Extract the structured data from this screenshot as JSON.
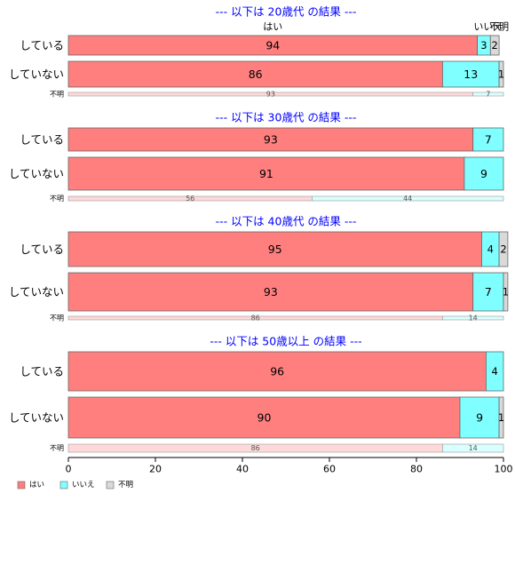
{
  "chart_data": {
    "type": "bar",
    "orientation": "horizontal",
    "stacked": true,
    "xlim": [
      0,
      100
    ],
    "xticks": [
      0,
      20,
      40,
      60,
      80,
      100
    ],
    "grid": false,
    "legend_position": "bottom-left",
    "colors": {
      "はい": "#ff7f7f",
      "いいえ": "#7fffff",
      "不明": "#d9d9d9",
      "axis": "#000000",
      "title": "#0000ff"
    },
    "column_headers": [
      {
        "text": "はい",
        "at": 47
      },
      {
        "text": "いいえ",
        "at": 96.5
      },
      {
        "text": "不明",
        "at": 99
      }
    ],
    "legend": [
      {
        "name": "はい",
        "color": "#ff7f7f"
      },
      {
        "name": "いいえ",
        "color": "#7fffff"
      },
      {
        "name": "不明",
        "color": "#d9d9d9"
      }
    ],
    "panels": [
      {
        "title": "--- 以下は 20歳代 の結果 ---",
        "show_headers": true,
        "rows": [
          {
            "label": "している",
            "values": [
              94,
              3,
              2
            ],
            "labels": [
              "94",
              "3",
              "2"
            ]
          },
          {
            "label": "していない",
            "values": [
              86,
              13,
              1
            ],
            "labels": [
              "86",
              "13",
              "1"
            ]
          }
        ],
        "unknown_row": {
          "label": "不明",
          "values": [
            93,
            7,
            0
          ],
          "labels": [
            "93",
            "7",
            ""
          ]
        }
      },
      {
        "title": "--- 以下は 30歳代 の結果 ---",
        "show_headers": false,
        "rows": [
          {
            "label": "している",
            "values": [
              93,
              7,
              0
            ],
            "labels": [
              "93",
              "7",
              ""
            ]
          },
          {
            "label": "していない",
            "values": [
              91,
              9,
              0
            ],
            "labels": [
              "91",
              "9",
              ""
            ]
          }
        ],
        "unknown_row": {
          "label": "不明",
          "values": [
            56,
            44,
            0
          ],
          "labels": [
            "56",
            "44",
            ""
          ]
        }
      },
      {
        "title": "--- 以下は 40歳代 の結果 ---",
        "show_headers": false,
        "rows": [
          {
            "label": "している",
            "values": [
              95,
              4,
              2
            ],
            "labels": [
              "95",
              "4",
              "2"
            ]
          },
          {
            "label": "していない",
            "values": [
              93,
              7,
              1
            ],
            "labels": [
              "93",
              "7",
              "1"
            ]
          }
        ],
        "unknown_row": {
          "label": "不明",
          "values": [
            86,
            14,
            0
          ],
          "labels": [
            "86",
            "14",
            ""
          ]
        }
      },
      {
        "title": "--- 以下は 50歳以上 の結果 ---",
        "show_headers": false,
        "rows": [
          {
            "label": "している",
            "values": [
              96,
              4,
              0
            ],
            "labels": [
              "96",
              "4",
              ""
            ]
          },
          {
            "label": "していない",
            "values": [
              90,
              9,
              1
            ],
            "labels": [
              "90",
              "9",
              "1"
            ]
          }
        ],
        "unknown_row": {
          "label": "不明",
          "values": [
            86,
            14,
            0
          ],
          "labels": [
            "86",
            "14",
            ""
          ]
        }
      }
    ]
  }
}
